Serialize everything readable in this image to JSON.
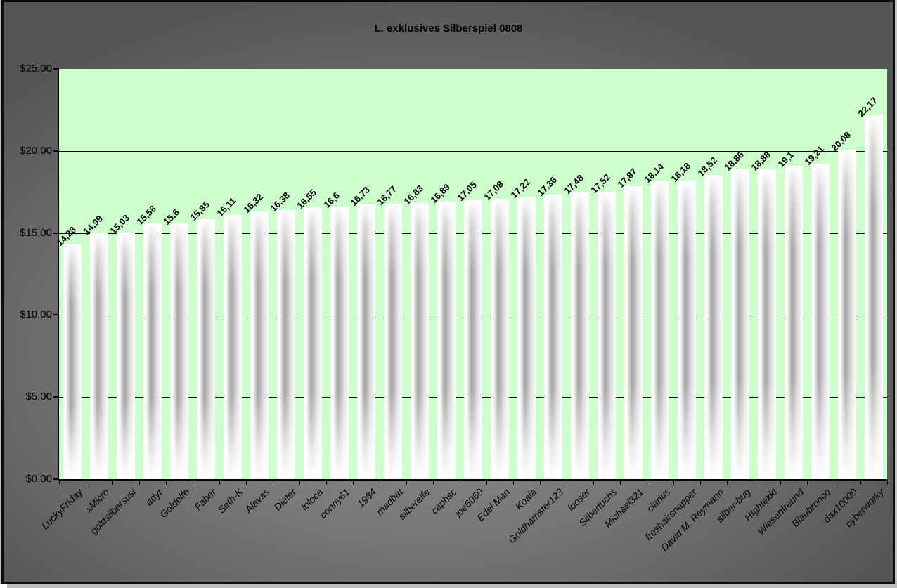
{
  "window": {
    "title": "L. exklusives Silberspiel 0808"
  },
  "chart_data": {
    "type": "bar",
    "title": "L. exklusives Silberspiel 0808",
    "xlabel": "",
    "ylabel": "",
    "ylim": [
      0,
      25
    ],
    "y_step": 5,
    "grid": "horizontal-solid-black",
    "legend": "none",
    "plot_bg_color": "#ccffcc",
    "outer_bg_color": "#7b7b7b",
    "bar_style": "white-gray-gradient-cylinder",
    "y_tick_labels": [
      "$0,00",
      "$5,00",
      "$10,00",
      "$15,00",
      "$20,00",
      "$25,00"
    ],
    "categories": [
      "LuckyFriday",
      "xMicro",
      "goldsilbersusi",
      "adyr",
      "Goldelfe",
      "Faber",
      "Seth-K",
      "Alavas",
      "Dieter",
      "loloca",
      "conny61",
      "1984",
      "madbat",
      "silberelfe",
      "caphsc",
      "joe6060",
      "Edel Man",
      "Koala",
      "Goldhamster123",
      "looser",
      "Silberfuchs",
      "Michael321",
      "clarius",
      "freshairsnapper",
      "David M. Reymann",
      "silber-bug",
      "HIghtekki",
      "Wiesenfreund",
      "Blaubronco",
      "dax10000",
      "cyberworky"
    ],
    "values": [
      14.28,
      14.99,
      15.03,
      15.58,
      15.6,
      15.85,
      16.11,
      16.32,
      16.38,
      16.55,
      16.6,
      16.73,
      16.77,
      16.83,
      16.89,
      17.05,
      17.08,
      17.22,
      17.36,
      17.48,
      17.52,
      17.87,
      18.14,
      18.18,
      18.52,
      18.86,
      18.88,
      19.1,
      19.21,
      20.08,
      22.17
    ],
    "value_labels": [
      "14,28",
      "14,99",
      "15,03",
      "15,58",
      "15,6",
      "15,85",
      "16,11",
      "16,32",
      "16,38",
      "16,55",
      "16,6",
      "16,73",
      "16,77",
      "16,83",
      "16,89",
      "17,05",
      "17,08",
      "17,22",
      "17,36",
      "17,48",
      "17,52",
      "17,87",
      "18,14",
      "18,18",
      "18,52",
      "18,86",
      "18,88",
      "19,1",
      "19,21",
      "20,08",
      "22,17"
    ]
  }
}
